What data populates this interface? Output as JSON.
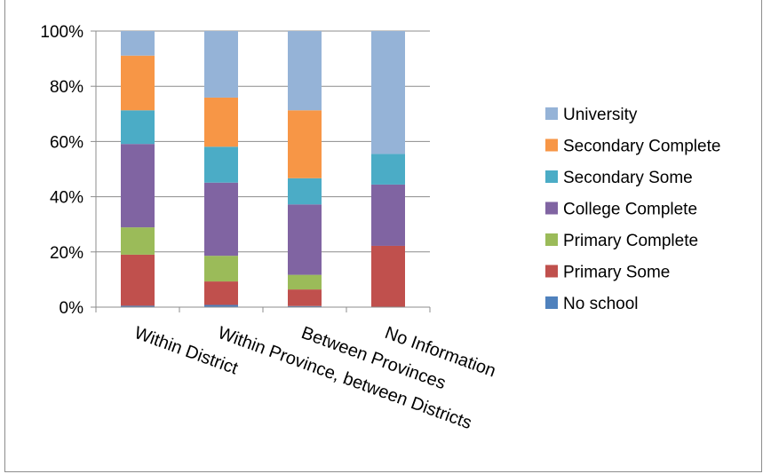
{
  "chart_data": {
    "type": "bar",
    "stacked": "percent",
    "categories": [
      "Within District",
      "Within Province, between Districts",
      "Between Provinces",
      "No Information"
    ],
    "series": [
      {
        "name": "No school",
        "color": "#4f81bd",
        "values": [
          0.5,
          0.8,
          0.4,
          0
        ]
      },
      {
        "name": "Primary Some",
        "color": "#c0504d",
        "values": [
          18.5,
          8.5,
          6.0,
          22.2
        ]
      },
      {
        "name": "Primary Complete",
        "color": "#9bbb59",
        "values": [
          9.9,
          9.3,
          5.3,
          0
        ]
      },
      {
        "name": "College Complete",
        "color": "#8064a2",
        "values": [
          30.2,
          26.5,
          25.5,
          22.2
        ]
      },
      {
        "name": "Secondary Some",
        "color": "#4bacc6",
        "values": [
          12.2,
          13.0,
          9.5,
          11.1
        ]
      },
      {
        "name": "Secondary Complete",
        "color": "#f79646",
        "values": [
          19.8,
          17.8,
          24.6,
          0
        ]
      },
      {
        "name": "University",
        "color": "#95b3d7",
        "values": [
          8.9,
          24.1,
          28.7,
          44.5
        ]
      }
    ],
    "ylim": [
      0,
      100
    ],
    "y_ticks": [
      "0%",
      "20%",
      "40%",
      "60%",
      "80%",
      "100%"
    ],
    "grid": true,
    "legend_position": "right"
  }
}
